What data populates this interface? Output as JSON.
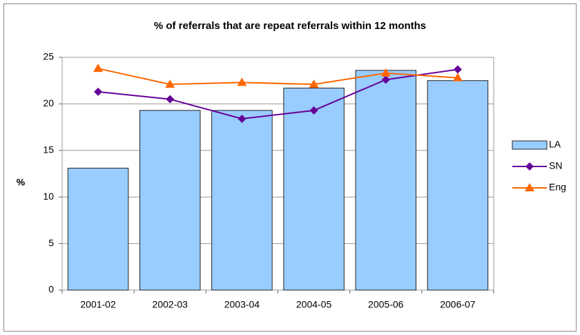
{
  "chart_data": {
    "type": "bar",
    "title": "% of referrals that are repeat referrals within 12 months",
    "y_label": "%",
    "categories": [
      "2001-02",
      "2002-03",
      "2003-04",
      "2004-05",
      "2005-06",
      "2006-07"
    ],
    "series": [
      {
        "name": "LA",
        "type": "bar",
        "color": "#99ccff",
        "values": [
          13.1,
          19.3,
          19.3,
          21.7,
          23.6,
          22.5
        ]
      },
      {
        "name": "SN",
        "type": "line",
        "marker": "diamond",
        "color": "#660099",
        "values": [
          21.3,
          20.5,
          18.4,
          19.3,
          22.6,
          23.7
        ]
      },
      {
        "name": "Eng",
        "type": "line",
        "marker": "triangle",
        "color": "#ff6600",
        "values": [
          23.8,
          22.1,
          22.3,
          22.1,
          23.3,
          22.8
        ]
      }
    ],
    "ylim": [
      0,
      25
    ],
    "yticks": [
      0,
      5,
      10,
      15,
      20,
      25
    ],
    "grid": true,
    "legend": "right"
  }
}
